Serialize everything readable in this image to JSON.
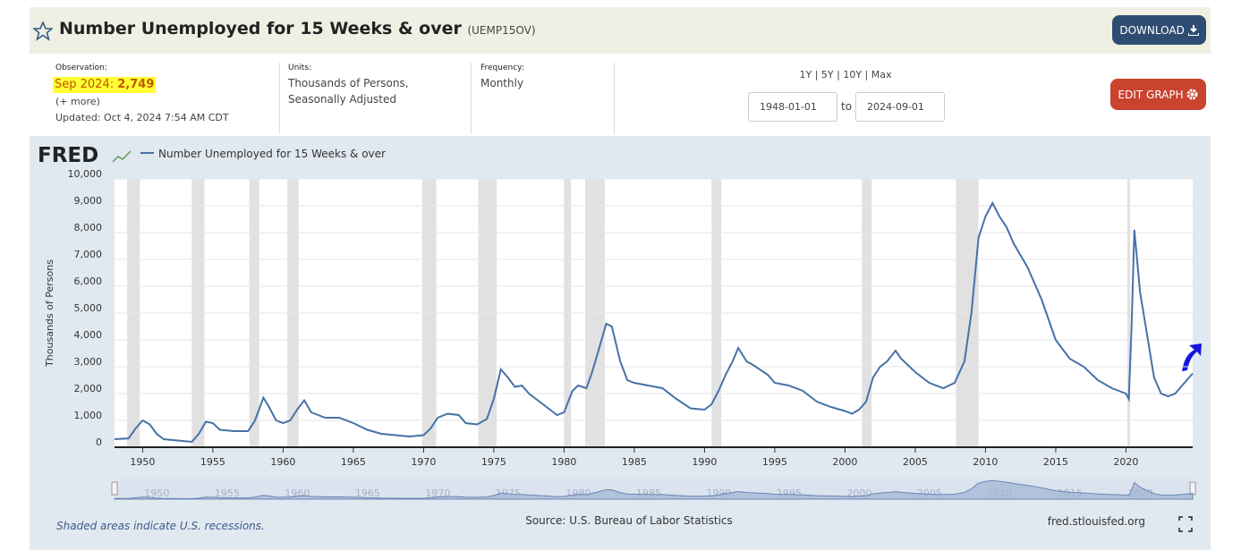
{
  "header": {
    "title": "Number Unemployed for 15 Weeks & over",
    "series_id": "(UEMP15OV)",
    "download": "DOWNLOAD"
  },
  "info": {
    "observation_label": "Observation:",
    "observation_date": "Sep 2024:",
    "observation_value": "2,749",
    "more": "(+ more)",
    "updated": "Updated: Oct 4, 2024 7:54 AM CDT",
    "units_label": "Units:",
    "units": [
      "Thousands of Persons,",
      "Seasonally Adjusted"
    ],
    "frequency_label": "Frequency:",
    "frequency": "Monthly",
    "ranges": "1Y | 5Y | 10Y | Max",
    "start": "1948-01-01",
    "to": "to",
    "end": "2024-09-01",
    "edit": "EDIT GRAPH"
  },
  "chart_data": {
    "type": "line",
    "logo": "FRED",
    "ylabel": "Thousands of Persons",
    "series": [
      {
        "name": "Number Unemployed for 15 Weeks & over",
        "color": "#4572a7",
        "values": [
          300,
          330,
          700,
          1000,
          850,
          500,
          300,
          250,
          200,
          500,
          950,
          900,
          650,
          600,
          600,
          1000,
          1850,
          1500,
          1000,
          900,
          1000,
          1400,
          1750,
          1300,
          1100,
          1100,
          900,
          650,
          500,
          450,
          400,
          450,
          700,
          1100,
          1250,
          1200,
          900,
          850,
          1050,
          1800,
          2900,
          2600,
          2250,
          2300,
          2000,
          1600,
          1200,
          1300,
          2100,
          2300,
          2200,
          2800,
          3700,
          4600,
          4500,
          3200,
          2500,
          2400,
          2300,
          2200,
          1800,
          1450,
          1400,
          1600,
          2100,
          2700,
          3200,
          3700,
          3200,
          3050,
          2700,
          2400,
          2300,
          2100,
          1700,
          1500,
          1350,
          1250,
          1400,
          1700,
          2600,
          3000,
          3200,
          3600,
          3300,
          2800,
          2400,
          2200,
          2400,
          3200,
          5000,
          7800,
          8600,
          9100,
          8600,
          8200,
          7600,
          6700,
          5500,
          4000,
          3300,
          3000,
          2500,
          2200,
          2000,
          1800,
          4500,
          8100,
          5800,
          4200,
          2600,
          2000,
          1900,
          2000,
          2300,
          2749
        ]
      }
    ],
    "x": [
      1948.0,
      1949.0,
      1949.5,
      1950.0,
      1950.5,
      1951.0,
      1951.5,
      1952.5,
      1953.5,
      1954.0,
      1954.5,
      1955.0,
      1955.5,
      1956.5,
      1957.5,
      1958.0,
      1958.6,
      1959.0,
      1959.5,
      1960.0,
      1960.5,
      1961.0,
      1961.5,
      1962.0,
      1963.0,
      1964.0,
      1965.0,
      1966.0,
      1967.0,
      1968.0,
      1969.0,
      1970.0,
      1970.5,
      1971.0,
      1971.7,
      1972.5,
      1973.0,
      1973.8,
      1974.5,
      1975.0,
      1975.5,
      1976.0,
      1976.5,
      1977.0,
      1977.5,
      1978.5,
      1979.5,
      1980.0,
      1980.6,
      1981.0,
      1981.6,
      1982.0,
      1982.5,
      1983.0,
      1983.4,
      1984.0,
      1984.5,
      1985.0,
      1986.0,
      1987.0,
      1988.0,
      1989.0,
      1990.0,
      1990.5,
      1991.0,
      1991.5,
      1992.0,
      1992.4,
      1993.0,
      1993.5,
      1994.5,
      1995.0,
      1996.0,
      1997.0,
      1998.0,
      1999.0,
      2000.0,
      2000.5,
      2001.0,
      2001.5,
      2002.0,
      2002.5,
      2003.0,
      2003.6,
      2004.0,
      2005.0,
      2006.0,
      2007.0,
      2007.8,
      2008.5,
      2009.0,
      2009.5,
      2010.0,
      2010.5,
      2011.0,
      2011.5,
      2012.0,
      2013.0,
      2014.0,
      2015.0,
      2016.0,
      2017.0,
      2018.0,
      2019.0,
      2020.0,
      2020.2,
      2020.4,
      2020.6,
      2021.0,
      2021.5,
      2022.0,
      2022.5,
      2023.0,
      2023.5,
      2024.0,
      2024.75
    ],
    "xlim": [
      1948,
      2024.75
    ],
    "xticks": [
      1950,
      1955,
      1960,
      1965,
      1970,
      1975,
      1980,
      1985,
      1990,
      1995,
      2000,
      2005,
      2010,
      2015,
      2020
    ],
    "ylim": [
      0,
      10000
    ],
    "yticks": [
      0,
      {
        "value": 1000,
        "label": "1,000"
      },
      {
        "value": 2000,
        "label": "2,000"
      },
      {
        "value": 3000,
        "label": "3,000"
      },
      {
        "value": 4000,
        "label": "4,000"
      },
      {
        "value": 5000,
        "label": "5,000"
      },
      {
        "value": 6000,
        "label": "6,000"
      },
      {
        "value": 7000,
        "label": "7,000"
      },
      {
        "value": 8000,
        "label": "8,000"
      },
      {
        "value": 9000,
        "label": "9,000"
      },
      {
        "value": 10000,
        "label": "10,000"
      }
    ],
    "grid": true,
    "recession_color": "#e1e1e1",
    "recessions": [
      [
        1948.9,
        1949.8
      ],
      [
        1953.5,
        1954.4
      ],
      [
        1957.6,
        1958.3
      ],
      [
        1960.3,
        1961.1
      ],
      [
        1969.9,
        1970.9
      ],
      [
        1973.9,
        1975.2
      ],
      [
        1980.0,
        1980.5
      ],
      [
        1981.5,
        1982.9
      ],
      [
        1990.5,
        1991.2
      ],
      [
        2001.2,
        2001.9
      ],
      [
        2007.9,
        2009.5
      ],
      [
        2020.1,
        2020.3
      ]
    ],
    "note": "Shaded areas indicate U.S. recessions.",
    "source": "Source: U.S. Bureau of Labor Statistics",
    "site": "fred.stlouisfed.org"
  }
}
